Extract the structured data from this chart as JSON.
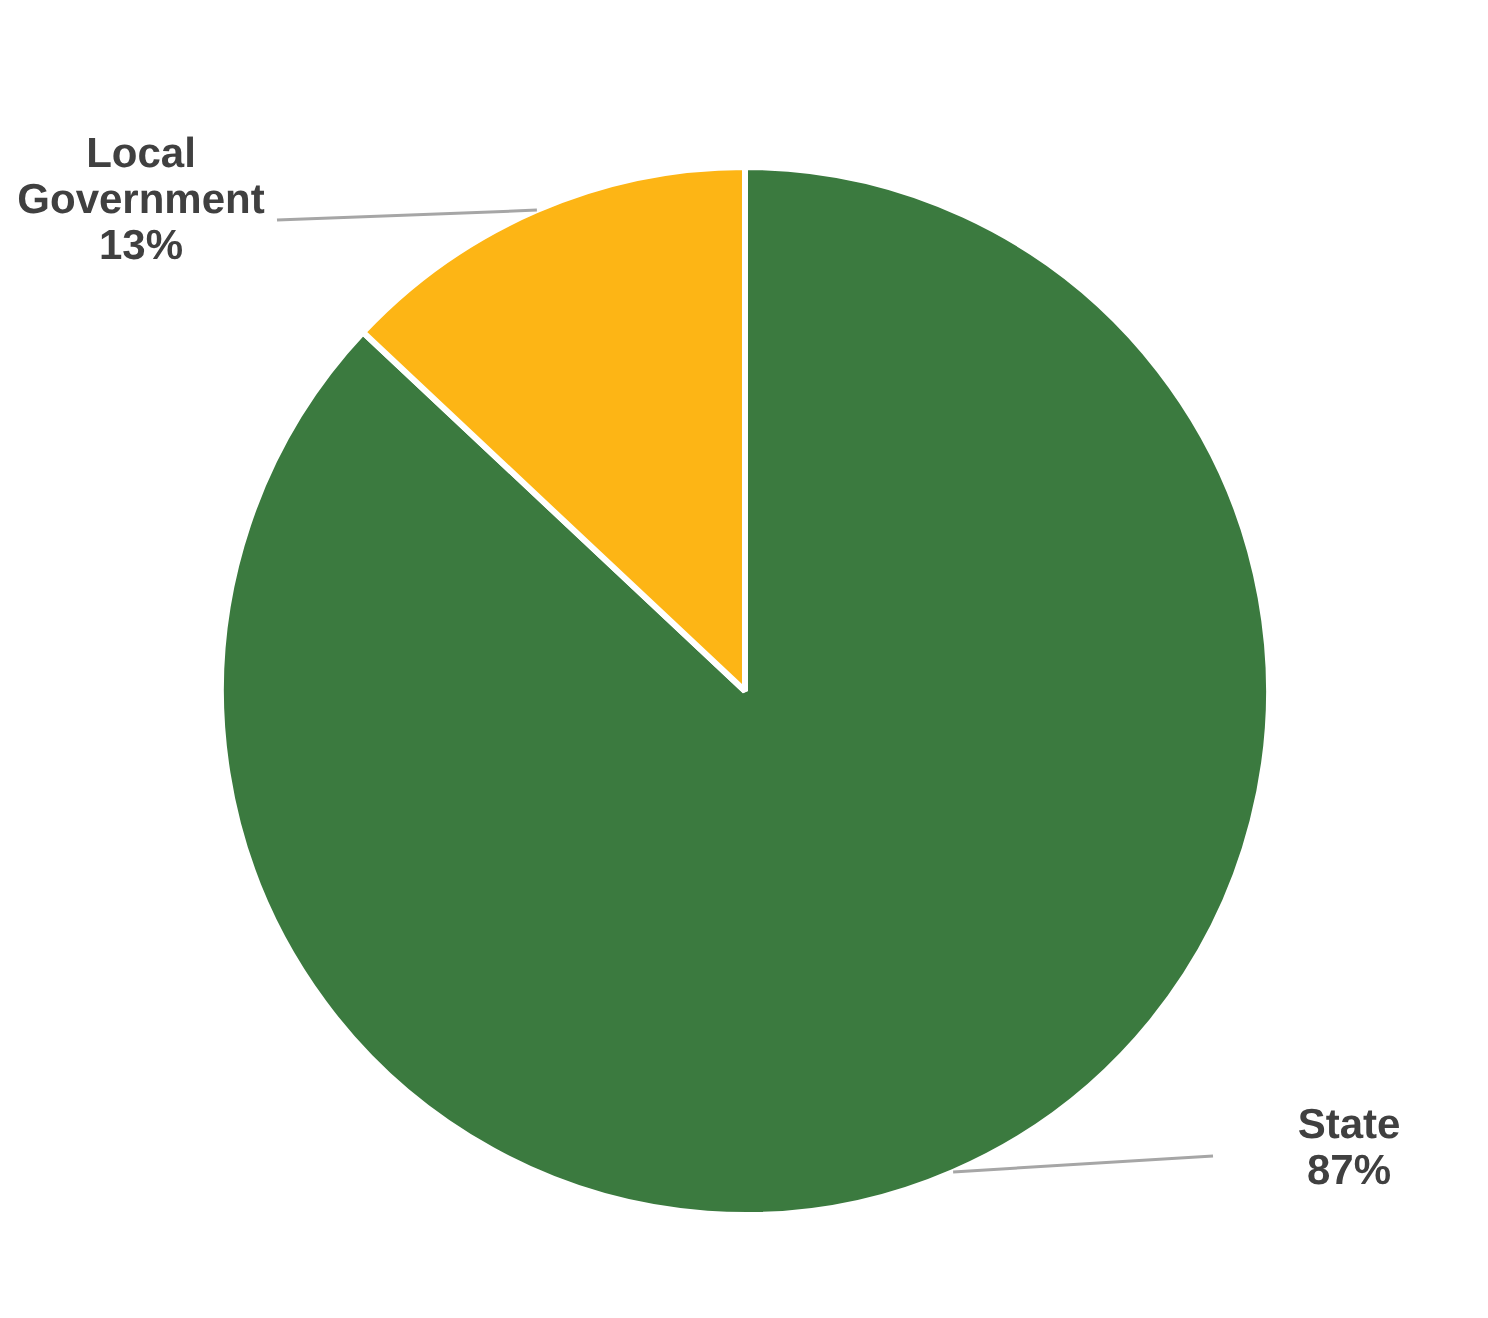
{
  "chart_data": {
    "type": "pie",
    "categories": [
      "State",
      "Local Government"
    ],
    "values": [
      87,
      13
    ],
    "colors": [
      "#3b7a3f",
      "#fdb515"
    ],
    "value_labels": [
      "87%",
      "13%"
    ]
  }
}
